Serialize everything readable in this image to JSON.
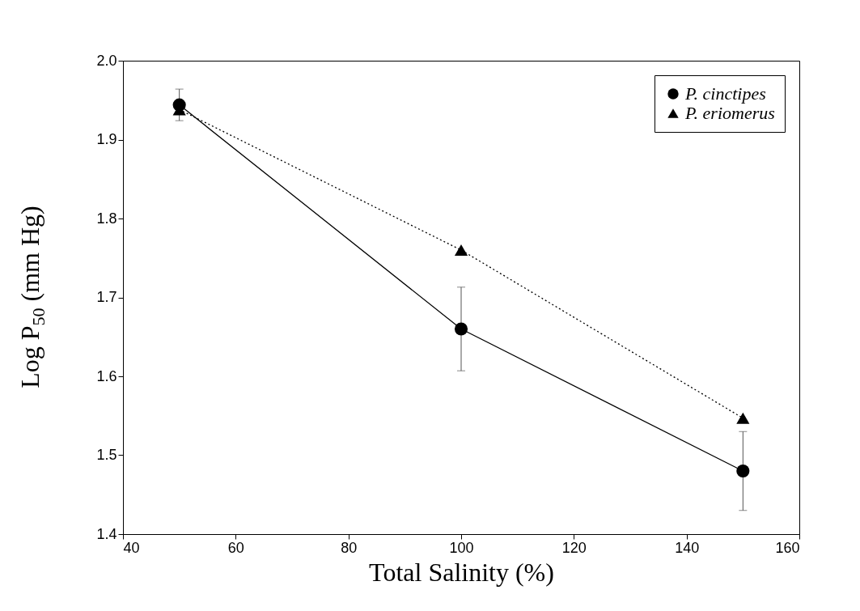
{
  "chart_data": {
    "type": "line",
    "xlabel": "Total Salinity (%)",
    "ylabel": "Log P$_{50}$ (mm Hg)",
    "x": [
      50,
      100,
      150
    ],
    "series": [
      {
        "name": "P. cinctipes",
        "color": "#000000",
        "marker": "circle",
        "line_style": "solid",
        "values": [
          1.944,
          1.66,
          1.48
        ],
        "errors": [
          0.02,
          0.053,
          0.05
        ]
      },
      {
        "name": "P. eriomerus",
        "color": "#000000",
        "marker": "triangle",
        "line_style": "dotted",
        "values": [
          1.938,
          1.76,
          1.547
        ]
      }
    ],
    "xlim": [
      40,
      160
    ],
    "xticks": [
      40,
      60,
      80,
      100,
      120,
      140,
      160
    ],
    "ylim": [
      1.4,
      2.0
    ],
    "yticks": [
      {
        "value": 1.4,
        "label": "1.4"
      },
      {
        "value": 1.5,
        "label": "1.5"
      },
      {
        "value": 1.6,
        "label": "1.6"
      },
      {
        "value": 1.7,
        "label": "1.7"
      },
      {
        "value": 1.8,
        "label": "1.8"
      },
      {
        "value": 1.9,
        "label": "1.9"
      },
      {
        "value": 2.0,
        "label": "2.0"
      }
    ],
    "grid": false,
    "legend": "top right"
  }
}
